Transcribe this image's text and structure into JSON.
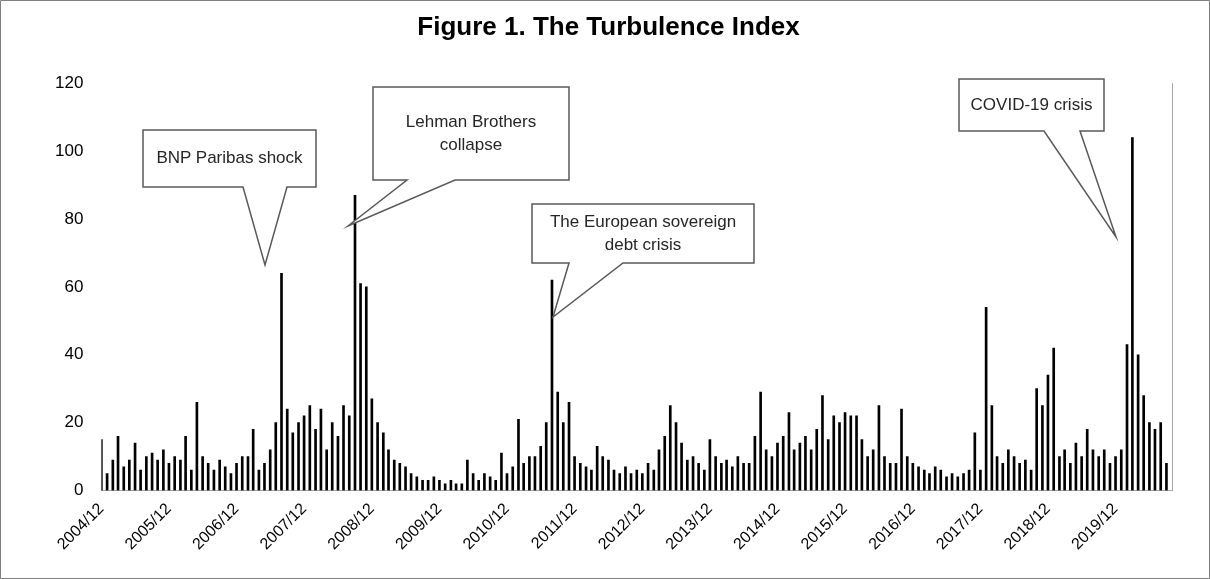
{
  "chart_data": {
    "type": "bar",
    "title": "Figure 1. The Turbulence Index",
    "x": [
      "2004-12",
      "2005-01",
      "2005-02",
      "2005-03",
      "2005-04",
      "2005-05",
      "2005-06",
      "2005-07",
      "2005-08",
      "2005-09",
      "2005-10",
      "2005-11",
      "2005-12",
      "2006-01",
      "2006-02",
      "2006-03",
      "2006-04",
      "2006-05",
      "2006-06",
      "2006-07",
      "2006-08",
      "2006-09",
      "2006-10",
      "2006-11",
      "2006-12",
      "2007-01",
      "2007-02",
      "2007-03",
      "2007-04",
      "2007-05",
      "2007-06",
      "2007-07",
      "2007-08",
      "2007-09",
      "2007-10",
      "2007-11",
      "2007-12",
      "2008-01",
      "2008-02",
      "2008-03",
      "2008-04",
      "2008-05",
      "2008-06",
      "2008-07",
      "2008-08",
      "2008-09",
      "2008-10",
      "2008-11",
      "2008-12",
      "2009-01",
      "2009-02",
      "2009-03",
      "2009-04",
      "2009-05",
      "2009-06",
      "2009-07",
      "2009-08",
      "2009-09",
      "2009-10",
      "2009-11",
      "2009-12",
      "2010-01",
      "2010-02",
      "2010-03",
      "2010-04",
      "2010-05",
      "2010-06",
      "2010-07",
      "2010-08",
      "2010-09",
      "2010-10",
      "2010-11",
      "2010-12",
      "2011-01",
      "2011-02",
      "2011-03",
      "2011-04",
      "2011-05",
      "2011-06",
      "2011-07",
      "2011-08",
      "2011-09",
      "2011-10",
      "2011-11",
      "2011-12",
      "2012-01",
      "2012-02",
      "2012-03",
      "2012-04",
      "2012-05",
      "2012-06",
      "2012-07",
      "2012-08",
      "2012-09",
      "2012-10",
      "2012-11",
      "2012-12",
      "2013-01",
      "2013-02",
      "2013-03",
      "2013-04",
      "2013-05",
      "2013-06",
      "2013-07",
      "2013-08",
      "2013-09",
      "2013-10",
      "2013-11",
      "2013-12",
      "2014-01",
      "2014-02",
      "2014-03",
      "2014-04",
      "2014-05",
      "2014-06",
      "2014-07",
      "2014-08",
      "2014-09",
      "2014-10",
      "2014-11",
      "2014-12",
      "2015-01",
      "2015-02",
      "2015-03",
      "2015-04",
      "2015-05",
      "2015-06",
      "2015-07",
      "2015-08",
      "2015-09",
      "2015-10",
      "2015-11",
      "2015-12",
      "2016-01",
      "2016-02",
      "2016-03",
      "2016-04",
      "2016-05",
      "2016-06",
      "2016-07",
      "2016-08",
      "2016-09",
      "2016-10",
      "2016-11",
      "2016-12",
      "2017-01",
      "2017-02",
      "2017-03",
      "2017-04",
      "2017-05",
      "2017-06",
      "2017-07",
      "2017-08",
      "2017-09",
      "2017-10",
      "2017-11",
      "2017-12",
      "2018-01",
      "2018-02",
      "2018-03",
      "2018-04",
      "2018-05",
      "2018-06",
      "2018-07",
      "2018-08",
      "2018-09",
      "2018-10",
      "2018-11",
      "2018-12",
      "2019-01",
      "2019-02",
      "2019-03",
      "2019-04",
      "2019-05",
      "2019-06",
      "2019-07",
      "2019-08",
      "2019-09",
      "2019-10",
      "2019-11",
      "2019-12",
      "2020-01",
      "2020-02",
      "2020-03",
      "2020-04",
      "2020-05",
      "2020-06",
      "2020-07",
      "2020-08",
      "2020-09"
    ],
    "values": [
      15,
      5,
      9,
      16,
      7,
      9,
      14,
      6,
      10,
      11,
      9,
      12,
      8,
      10,
      9,
      16,
      6,
      26,
      10,
      8,
      6,
      9,
      7,
      5,
      8,
      10,
      10,
      18,
      6,
      8,
      12,
      20,
      64,
      24,
      17,
      20,
      22,
      25,
      18,
      24,
      12,
      20,
      16,
      25,
      22,
      87,
      61,
      60,
      27,
      20,
      17,
      12,
      9,
      8,
      7,
      5,
      4,
      3,
      3,
      4,
      3,
      2,
      3,
      2,
      2,
      9,
      5,
      3,
      5,
      4,
      3,
      11,
      5,
      7,
      21,
      8,
      10,
      10,
      13,
      20,
      62,
      29,
      20,
      26,
      10,
      8,
      7,
      6,
      13,
      10,
      9,
      6,
      5,
      7,
      5,
      6,
      5,
      8,
      6,
      12,
      16,
      25,
      20,
      14,
      9,
      10,
      8,
      6,
      15,
      10,
      8,
      9,
      7,
      10,
      8,
      8,
      16,
      29,
      12,
      10,
      14,
      16,
      23,
      12,
      14,
      16,
      12,
      18,
      28,
      15,
      22,
      20,
      23,
      22,
      22,
      15,
      10,
      12,
      25,
      10,
      8,
      8,
      24,
      10,
      8,
      7,
      6,
      5,
      7,
      6,
      4,
      5,
      4,
      5,
      6,
      17,
      6,
      54,
      25,
      10,
      8,
      12,
      10,
      8,
      9,
      6,
      30,
      25,
      34,
      42,
      10,
      12,
      8,
      14,
      10,
      18,
      12,
      10,
      12,
      8,
      10,
      12,
      43,
      104,
      40,
      28,
      20,
      18,
      20,
      8
    ],
    "color": "#000000",
    "xlim": [
      "2004-12",
      "2020-10"
    ],
    "xticks": [
      {
        "value": "2004-12",
        "label": "2004/12"
      },
      {
        "value": "2005-12",
        "label": "2005/12"
      },
      {
        "value": "2006-12",
        "label": "2006/12"
      },
      {
        "value": "2007-12",
        "label": "2007/12"
      },
      {
        "value": "2008-12",
        "label": "2008/12"
      },
      {
        "value": "2009-12",
        "label": "2009/12"
      },
      {
        "value": "2010-12",
        "label": "2010/12"
      },
      {
        "value": "2011-12",
        "label": "2011/12"
      },
      {
        "value": "2012-12",
        "label": "2012/12"
      },
      {
        "value": "2013-12",
        "label": "2013/12"
      },
      {
        "value": "2014-12",
        "label": "2014/12"
      },
      {
        "value": "2015-12",
        "label": "2015/12"
      },
      {
        "value": "2016-12",
        "label": "2016/12"
      },
      {
        "value": "2017-12",
        "label": "2017/12"
      },
      {
        "value": "2018-12",
        "label": "2018/12"
      },
      {
        "value": "2019-12",
        "label": "2019/12"
      }
    ],
    "ylim": [
      0,
      120
    ],
    "yticks": [
      0,
      20,
      40,
      60,
      80,
      100,
      120
    ],
    "grid": false,
    "legend": false,
    "annotations": [
      "BNP Paribas shock",
      "Lehman Brothers collapse",
      "The European sovereign debt crisis",
      "COVID-19 crisis"
    ]
  }
}
